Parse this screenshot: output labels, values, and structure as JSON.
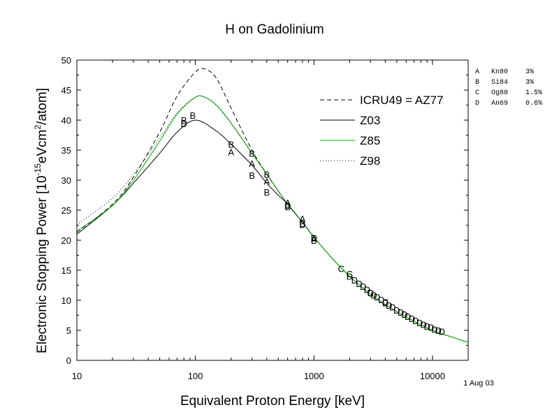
{
  "chart_data": {
    "type": "line",
    "title": "H on Gadolinium",
    "xlabel": "Equivalent Proton Energy [keV]",
    "ylabel_parts": [
      "Electronic Stopping Power [10",
      "-15",
      "eVcm",
      "2",
      "/atom]"
    ],
    "xscale": "log",
    "xlim": [
      10,
      20000
    ],
    "ylim": [
      0,
      50
    ],
    "x_ticks": [
      10,
      100,
      1000,
      10000
    ],
    "x_tick_labels": [
      "10",
      "100",
      "1000",
      "10000"
    ],
    "y_ticks": [
      0,
      5,
      10,
      15,
      20,
      25,
      30,
      35,
      40,
      45,
      50
    ],
    "y_tick_labels": [
      "0",
      "5",
      "10",
      "15",
      "20",
      "25",
      "30",
      "35",
      "40",
      "45",
      "50"
    ],
    "grid": false,
    "legend_position": "top-right",
    "date_label": "1 Aug 03",
    "series": [
      {
        "name": "ICRU49 = AZ77",
        "color": "#000000",
        "dash": "dashed",
        "x": [
          10,
          20,
          30,
          50,
          70,
          100,
          120,
          150,
          200,
          300,
          400,
          600,
          800,
          1000
        ],
        "y": [
          21.3,
          26.0,
          30.5,
          38.0,
          44.0,
          48.0,
          48.5,
          47.0,
          42.0,
          35.0,
          31.0,
          26.0,
          23.0,
          20.5
        ]
      },
      {
        "name": "Z03",
        "color": "#000000",
        "dash": "solid",
        "x": [
          10,
          20,
          30,
          50,
          70,
          100,
          150,
          200,
          300,
          400,
          500,
          600,
          800,
          1000,
          1500,
          2000,
          3000,
          4000,
          5000,
          7000,
          10000,
          15000,
          20000
        ],
        "y": [
          21.0,
          25.8,
          29.5,
          34.5,
          38.0,
          40.0,
          38.2,
          36.0,
          32.5,
          29.5,
          27.5,
          26.0,
          23.0,
          20.5,
          16.5,
          14.0,
          11.0,
          9.3,
          8.1,
          6.5,
          5.0,
          3.8,
          3.0
        ]
      },
      {
        "name": "Z85",
        "color": "#00b000",
        "dash": "solid",
        "x": [
          10,
          20,
          30,
          50,
          70,
          100,
          120,
          150,
          200,
          300,
          400,
          600,
          800,
          1000,
          1500,
          2000,
          3000,
          4000,
          5000,
          7000,
          10000,
          15000,
          20000
        ],
        "y": [
          21.5,
          25.8,
          30.0,
          36.5,
          41.0,
          43.8,
          43.8,
          42.5,
          39.5,
          34.5,
          31.0,
          26.0,
          23.0,
          20.5,
          16.5,
          14.0,
          11.0,
          9.3,
          8.1,
          6.5,
          5.0,
          3.8,
          3.0
        ]
      },
      {
        "name": "Z98",
        "color": "#000000",
        "dash": "dotted",
        "x": [
          10,
          20,
          30,
          50,
          70,
          100,
          120,
          150,
          200,
          300,
          400,
          600,
          800,
          1000
        ],
        "y": [
          22.6,
          27.0,
          31.0,
          37.0,
          41.2,
          43.8,
          43.8,
          42.5,
          39.5,
          34.5,
          31.0,
          26.0,
          23.0,
          20.5
        ]
      }
    ],
    "references": [
      {
        "letter": "A",
        "label": "Kn80",
        "pct": "3%"
      },
      {
        "letter": "B",
        "label": "Si84",
        "pct": "3%"
      },
      {
        "letter": "C",
        "label": "Og88",
        "pct": "1.5%"
      },
      {
        "letter": "D",
        "label": "An69",
        "pct": "0.6%"
      }
    ],
    "points": [
      {
        "ref": "A",
        "x": 200,
        "y": 34.7
      },
      {
        "ref": "A",
        "x": 300,
        "y": 32.8
      },
      {
        "ref": "A",
        "x": 400,
        "y": 29.8
      },
      {
        "ref": "A",
        "x": 600,
        "y": 26.3
      },
      {
        "ref": "A",
        "x": 800,
        "y": 23.6
      },
      {
        "ref": "A",
        "x": 1000,
        "y": 20.3
      },
      {
        "ref": "B",
        "x": 80,
        "y": 40.0
      },
      {
        "ref": "B",
        "x": 95,
        "y": 40.8
      },
      {
        "ref": "B",
        "x": 200,
        "y": 36.0
      },
      {
        "ref": "B",
        "x": 300,
        "y": 34.5
      },
      {
        "ref": "B",
        "x": 300,
        "y": 30.8
      },
      {
        "ref": "B",
        "x": 400,
        "y": 31.0
      },
      {
        "ref": "B",
        "x": 400,
        "y": 28.0
      },
      {
        "ref": "B",
        "x": 600,
        "y": 25.6
      },
      {
        "ref": "B",
        "x": 800,
        "y": 22.8
      },
      {
        "ref": "B",
        "x": 1000,
        "y": 20.0
      },
      {
        "ref": "C",
        "x": 1700,
        "y": 15.3
      },
      {
        "ref": "C",
        "x": 2000,
        "y": 14.4
      },
      {
        "ref": "C",
        "x": 3000,
        "y": 11.2
      },
      {
        "ref": "C",
        "x": 4000,
        "y": 9.7
      },
      {
        "ref": "D",
        "x": 80,
        "y": 39.4
      },
      {
        "ref": "D",
        "x": 600,
        "y": 25.8
      },
      {
        "ref": "D",
        "x": 800,
        "y": 22.6
      },
      {
        "ref": "D",
        "x": 1000,
        "y": 20.4
      },
      {
        "ref": "D",
        "x": 2000,
        "y": 14.0
      },
      {
        "ref": "D",
        "x": 2200,
        "y": 13.4
      },
      {
        "ref": "D",
        "x": 2400,
        "y": 12.8
      },
      {
        "ref": "D",
        "x": 2600,
        "y": 12.3
      },
      {
        "ref": "D",
        "x": 2800,
        "y": 11.8
      },
      {
        "ref": "D",
        "x": 3000,
        "y": 11.3
      },
      {
        "ref": "D",
        "x": 3200,
        "y": 10.9
      },
      {
        "ref": "D",
        "x": 3400,
        "y": 10.6
      },
      {
        "ref": "D",
        "x": 3700,
        "y": 10.1
      },
      {
        "ref": "D",
        "x": 4000,
        "y": 9.6
      },
      {
        "ref": "D",
        "x": 4300,
        "y": 9.2
      },
      {
        "ref": "D",
        "x": 4600,
        "y": 8.9
      },
      {
        "ref": "D",
        "x": 5000,
        "y": 8.4
      },
      {
        "ref": "D",
        "x": 5400,
        "y": 8.0
      },
      {
        "ref": "D",
        "x": 5800,
        "y": 7.7
      },
      {
        "ref": "D",
        "x": 6200,
        "y": 7.3
      },
      {
        "ref": "D",
        "x": 6700,
        "y": 7.0
      },
      {
        "ref": "D",
        "x": 7200,
        "y": 6.6
      },
      {
        "ref": "D",
        "x": 7800,
        "y": 6.3
      },
      {
        "ref": "D",
        "x": 8400,
        "y": 6.0
      },
      {
        "ref": "D",
        "x": 9000,
        "y": 5.7
      },
      {
        "ref": "D",
        "x": 9700,
        "y": 5.5
      },
      {
        "ref": "D",
        "x": 10400,
        "y": 5.2
      },
      {
        "ref": "D",
        "x": 11200,
        "y": 5.0
      },
      {
        "ref": "D",
        "x": 12000,
        "y": 4.8
      }
    ]
  }
}
